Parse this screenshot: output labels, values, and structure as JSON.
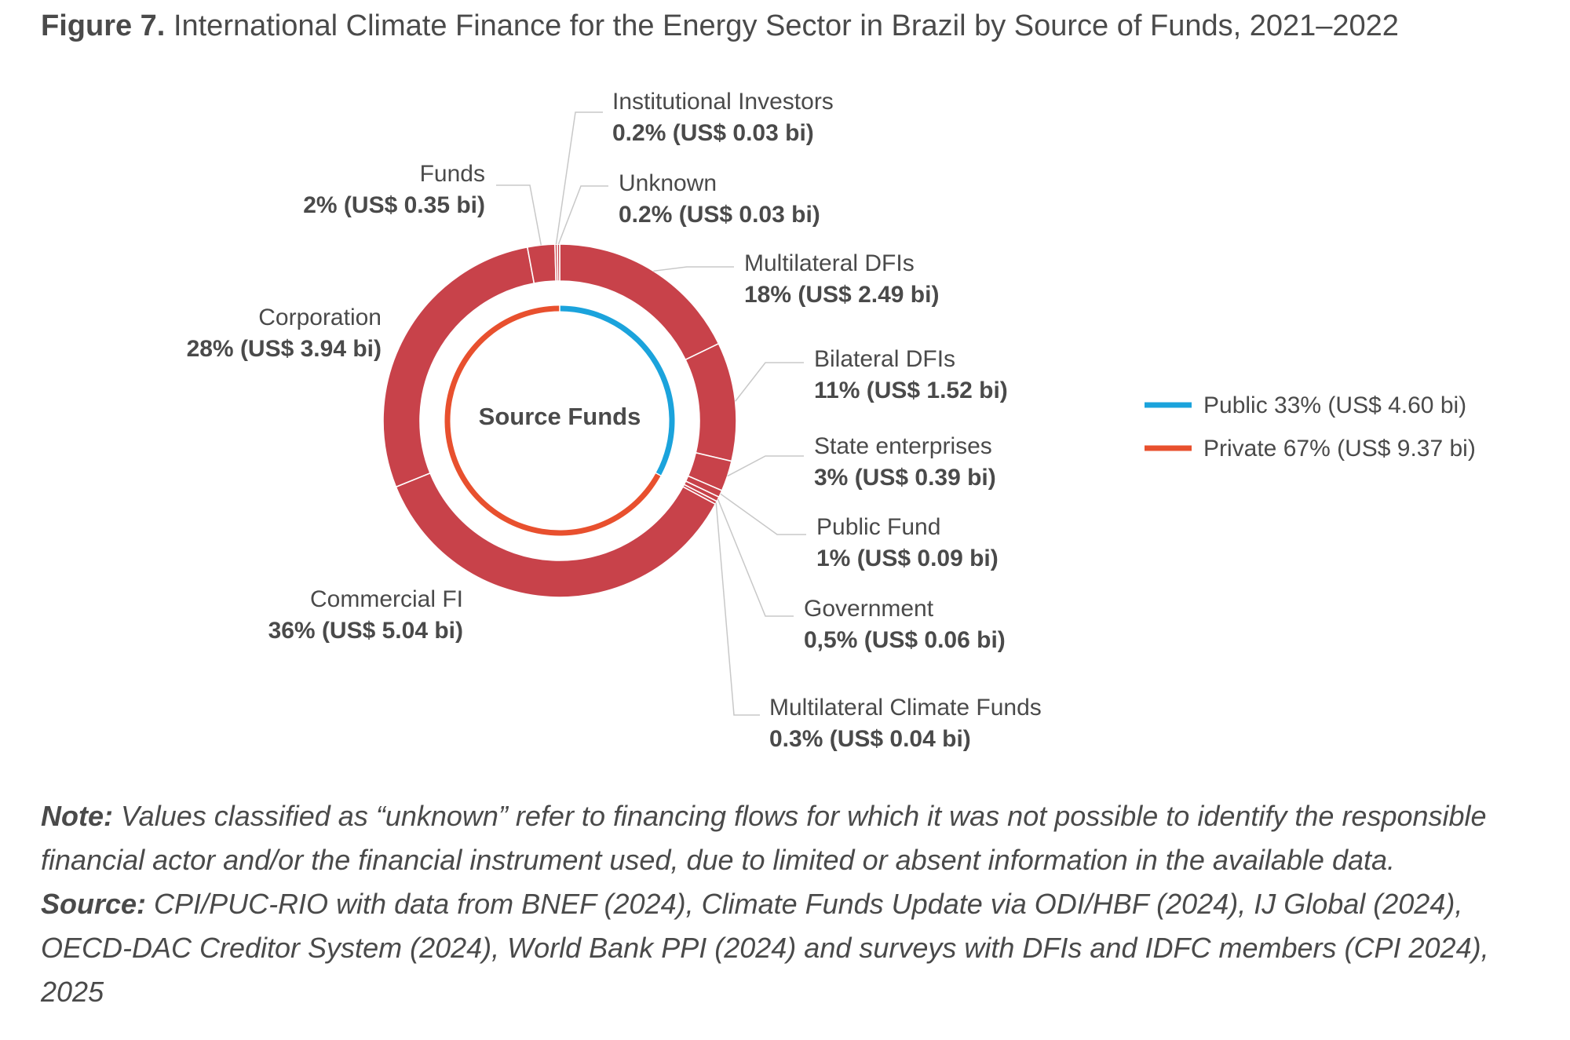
{
  "figure": {
    "number": "Figure 7.",
    "title": "International Climate Finance for the Energy Sector in Brazil by Source of Funds, 2021–2022"
  },
  "chart_data": {
    "type": "pie",
    "style": "donut",
    "center_label": "Source Funds",
    "slices": [
      {
        "name": "Multilateral DFIs",
        "label": "18% (US$ 2.49 bi)",
        "value": 2.49,
        "group": "Public"
      },
      {
        "name": "Bilateral DFIs",
        "label": "11% (US$ 1.52 bi)",
        "value": 1.52,
        "group": "Public"
      },
      {
        "name": "State enterprises",
        "label": "3% (US$ 0.39 bi)",
        "value": 0.39,
        "group": "Public"
      },
      {
        "name": "Public Fund",
        "label": "1% (US$ 0.09 bi)",
        "value": 0.09,
        "group": "Public"
      },
      {
        "name": "Government",
        "label": "0,5% (US$ 0.06 bi)",
        "value": 0.06,
        "group": "Public"
      },
      {
        "name": "Multilateral Climate Funds",
        "label": "0.3% (US$ 0.04 bi)",
        "value": 0.04,
        "group": "Public"
      },
      {
        "name": "Commercial FI",
        "label": "36% (US$ 5.04 bi)",
        "value": 5.04,
        "group": "Private"
      },
      {
        "name": "Corporation",
        "label": "28% (US$ 3.94 bi)",
        "value": 3.94,
        "group": "Private"
      },
      {
        "name": "Funds",
        "label": "2% (US$ 0.35 bi)",
        "value": 0.35,
        "group": "Private"
      },
      {
        "name": "Institutional Investors",
        "label": "0.2% (US$ 0.03 bi)",
        "value": 0.03,
        "group": "Private"
      },
      {
        "name": "Unknown",
        "label": "0.2% (US$ 0.03 bi)",
        "value": 0.03,
        "group": "Private"
      }
    ],
    "inner_ring": [
      {
        "name": "Public",
        "label": "Public 33% (US$ 4.60 bi)",
        "value": 4.6,
        "color": "#1ba3dc"
      },
      {
        "name": "Private",
        "label": "Private 67% (US$ 9.37 bi)",
        "value": 9.37,
        "color": "#e8502e"
      }
    ],
    "slice_color": "#c8424a",
    "legend_position": "right"
  },
  "note": {
    "note_label": "Note:",
    "note_text": " Values classified as “unknown” refer to financing flows for which it was not possible to identify the responsible financial actor and/or the financial instrument used, due to limited or absent information in the available data.",
    "source_label": "Source:",
    "source_text": " CPI/PUC-RIO with data from BNEF (2024), Climate Funds Update via ODI/HBF (2024), IJ Global (2024), OECD-DAC Creditor System (2024), World Bank PPI (2024) and surveys with DFIs and IDFC members (CPI 2024), 2025"
  }
}
